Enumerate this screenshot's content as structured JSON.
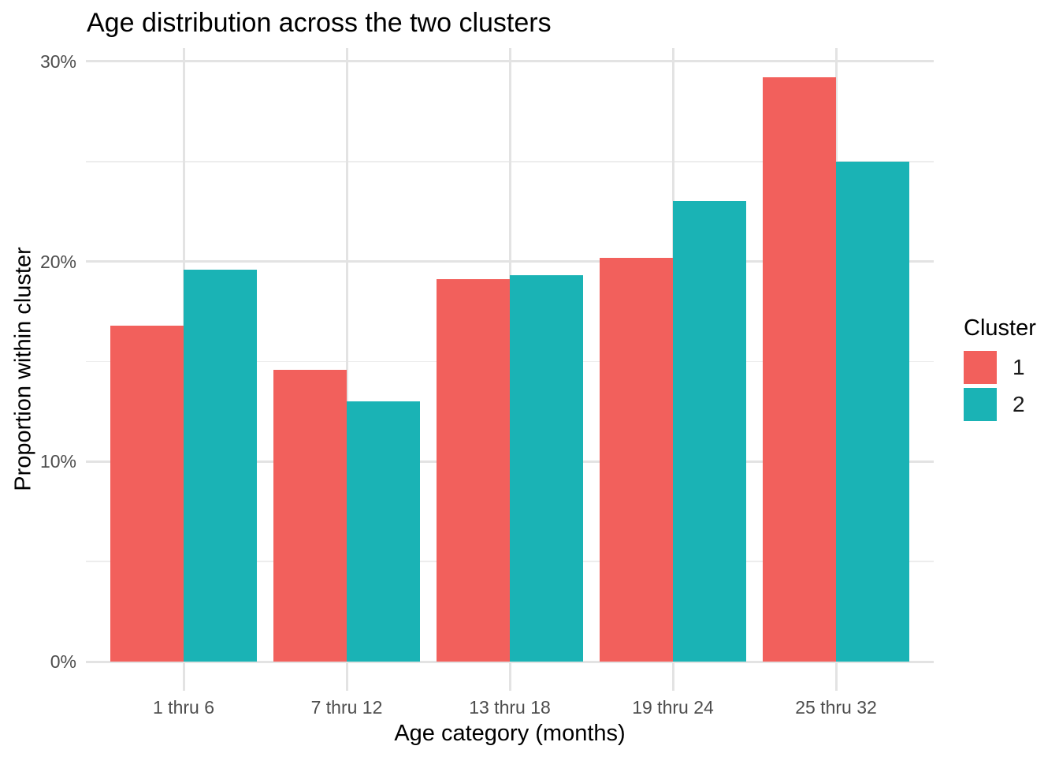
{
  "chart_data": {
    "type": "bar",
    "title": "Age distribution across the two clusters",
    "xlabel": "Age category (months)",
    "ylabel": "Proportion within cluster",
    "categories": [
      "1 thru 6",
      "7 thru 12",
      "13 thru 18",
      "19 thru 24",
      "25 thru 32"
    ],
    "series": [
      {
        "name": "1",
        "color": "#F2605C",
        "values": [
          16.8,
          14.6,
          19.1,
          20.2,
          29.2
        ]
      },
      {
        "name": "2",
        "color": "#1AB3B5",
        "values": [
          19.6,
          13.0,
          19.3,
          23.0,
          25.0
        ]
      }
    ],
    "value_unit": "%",
    "y_ticks": [
      {
        "value": 0,
        "label": "0%"
      },
      {
        "value": 10,
        "label": "10%"
      },
      {
        "value": 20,
        "label": "20%"
      },
      {
        "value": 30,
        "label": "30%"
      }
    ],
    "y_minor_ticks": [
      5,
      15,
      25
    ],
    "ylim": [
      -1.5,
      30.7
    ],
    "grid": "major-and-minor",
    "legend": {
      "title": "Cluster",
      "position": "right",
      "entries": [
        "1",
        "2"
      ]
    }
  }
}
